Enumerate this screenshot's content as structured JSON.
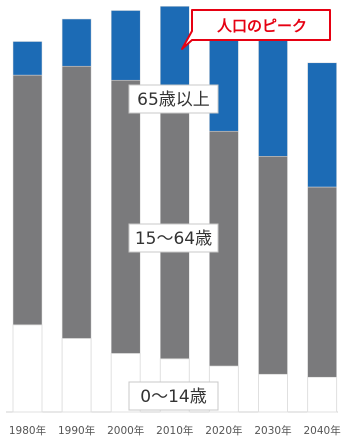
{
  "chart_data": {
    "type": "bar",
    "stacked": true,
    "categories": [
      "1980年",
      "1990年",
      "2000年",
      "2010年",
      "2020年",
      "2030年",
      "2040年"
    ],
    "ylim": [
      0,
      130
    ],
    "grid": false,
    "series": [
      {
        "name": "0～14歳",
        "color": "#ffffff",
        "values": [
          27.5,
          23.2,
          18.5,
          16.8,
          14.5,
          11.9,
          11.0
        ]
      },
      {
        "name": "15～64歳",
        "color": "#7a7a7c",
        "values": [
          78.8,
          85.9,
          86.2,
          81.7,
          74.1,
          68.8,
          60.0
        ]
      },
      {
        "name": "65歳以上",
        "color": "#1c6bb5",
        "values": [
          10.6,
          14.9,
          22.0,
          29.5,
          36.2,
          37.0,
          39.2
        ]
      }
    ],
    "annotation": {
      "text": "人口のピーク",
      "target_category": "2010年",
      "color": "#e60012"
    }
  }
}
